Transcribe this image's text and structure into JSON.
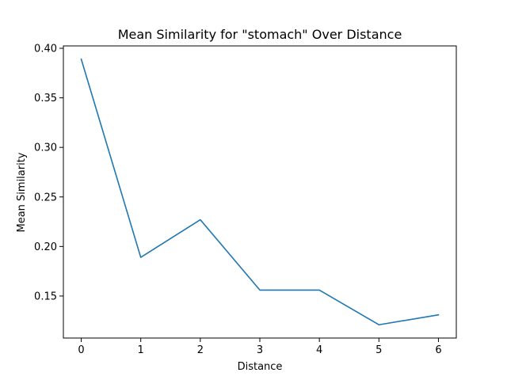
{
  "chart_data": {
    "type": "line",
    "title": "Mean Similarity for \"stomach\" Over Distance",
    "xlabel": "Distance",
    "ylabel": "Mean Similarity",
    "x": [
      0,
      1,
      2,
      3,
      4,
      5,
      6
    ],
    "series": [
      {
        "values": [
          0.389,
          0.189,
          0.227,
          0.156,
          0.156,
          0.121,
          0.131
        ],
        "color": "#1f77b4"
      }
    ],
    "xlim": [
      -0.3,
      6.3
    ],
    "ylim": [
      0.1076,
      0.4024
    ],
    "xticks": [
      0,
      1,
      2,
      3,
      4,
      5,
      6
    ],
    "xtick_labels": [
      "0",
      "1",
      "2",
      "3",
      "4",
      "5",
      "6"
    ],
    "yticks": [
      0.15,
      0.2,
      0.25,
      0.3,
      0.35,
      0.4
    ],
    "ytick_labels": [
      "0.15",
      "0.20",
      "0.25",
      "0.30",
      "0.35",
      "0.40"
    ],
    "grid": false,
    "legend": "none"
  }
}
